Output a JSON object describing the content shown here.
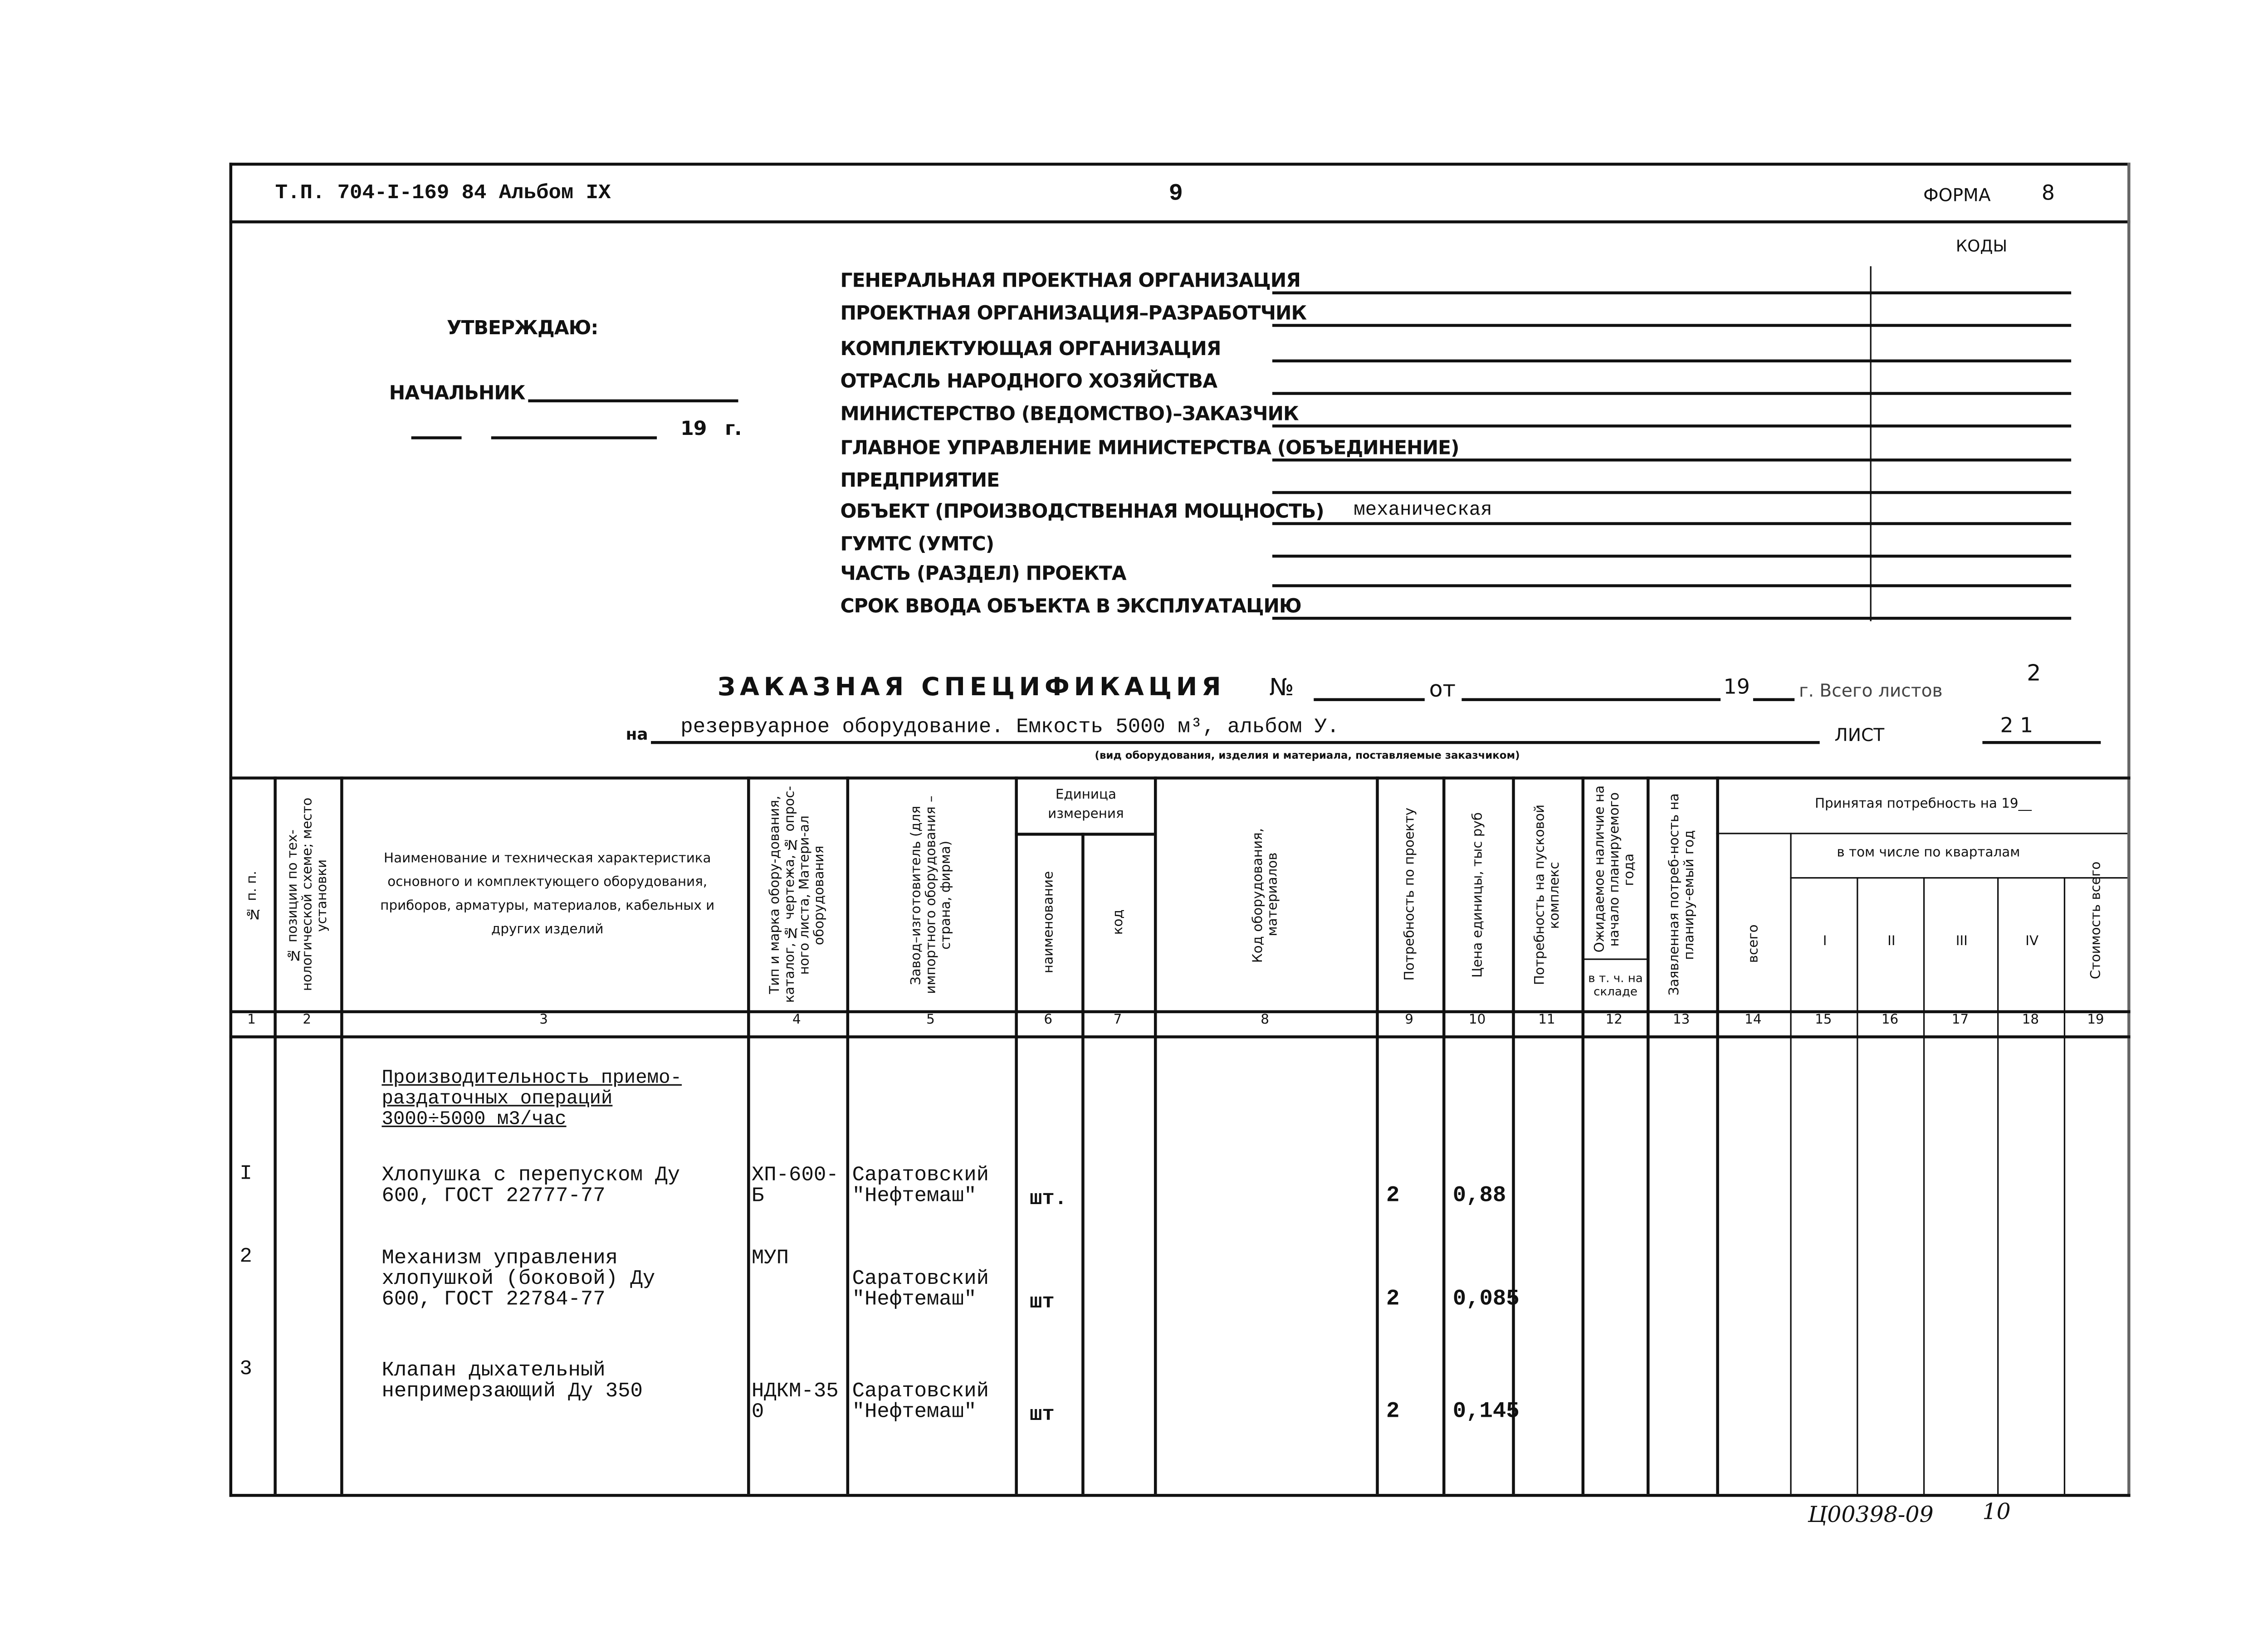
{
  "header": {
    "doc_ref": "Т.П. 704-I-169 84  Альбом IX",
    "page_number": "9",
    "form_label": "ФОРМА",
    "form_number": "8",
    "codes_label": "КОДЫ"
  },
  "approval": {
    "approve": "УТВЕРЖДАЮ:",
    "chief": "НАЧАЛЬНИК",
    "date_year": "19",
    "date_suffix": "г."
  },
  "fields": [
    {
      "label": "ГЕНЕРАЛЬНАЯ ПРОЕКТНАЯ ОРГАНИЗАЦИЯ",
      "value": ""
    },
    {
      "label": "ПРОЕКТНАЯ ОРГАНИЗАЦИЯ–РАЗРАБОТЧИК",
      "value": ""
    },
    {
      "label": "КОМПЛЕКТУЮЩАЯ ОРГАНИЗАЦИЯ",
      "value": ""
    },
    {
      "label": "ОТРАСЛЬ НАРОДНОГО ХОЗЯЙСТВА",
      "value": ""
    },
    {
      "label": "МИНИСТЕРСТВО (ВЕДОМСТВО)–ЗАКАЗЧИК",
      "value": ""
    },
    {
      "label": "ГЛАВНОЕ УПРАВЛЕНИЕ МИНИСТЕРСТВА (ОБЪЕДИНЕНИЕ)",
      "value": ""
    },
    {
      "label": "ПРЕДПРИЯТИЕ",
      "value": ""
    },
    {
      "label": "ОБЪЕКТ (ПРОИЗВОДСТВЕННАЯ МОЩНОСТЬ)",
      "value": "механическая"
    },
    {
      "label": "ГУМТС (УМТС)",
      "value": ""
    },
    {
      "label": "ЧАСТЬ (РАЗДЕЛ) ПРОЕКТА",
      "value": ""
    },
    {
      "label": "СРОК ВВОДА ОБЪЕКТА В ЭКСПЛУАТАЦИЮ",
      "value": ""
    }
  ],
  "spec": {
    "title": "ЗАКАЗНАЯ СПЕЦИФИКАЦИЯ",
    "no_label": "№",
    "from_label": "от",
    "year_label": "19",
    "sheets_label": "г. Всего листов",
    "sheets_total": "2",
    "on_label": "на",
    "subject": "резервуарное оборудование. Емкость 5000 м³, альбом У.",
    "subject_caption": "(вид оборудования, изделия и материала, поставляемые заказчиком)",
    "sheet_label": "ЛИСТ",
    "sheet_number": "2 1"
  },
  "columns": {
    "c1": "№ п. п.",
    "c2": "№ позиции по тех-нологической схеме; место установки",
    "c3": "Наименование и техническая характеристика основного и комплектующего оборудования, приборов, арматуры, материалов, кабельных и других изделий",
    "c4": "Тип и марка обору-дования, каталог, № чертежа, № опрос-ного листа, Матери-ал оборудования",
    "c5": "Завод–изготовитель (для импортного оборудования –страна, фирма)",
    "c6_7": "Единица измерения",
    "c6": "наименование",
    "c7": "код",
    "c8": "Код оборудования, материалов",
    "c9": "Потребность по проекту",
    "c10": "Цена единицы, тыс руб",
    "c11": "Потребность на пусковой комплекс",
    "c12": "Ожидаемое наличие на начало планируемого года",
    "c12b": "в т. ч. на складе",
    "c13": "Заявленная потреб-ность на планиру-емый год",
    "c14_19": "Принятая потребность на 19__",
    "c15_18": "в том числе по кварталам",
    "c14": "всего",
    "c15": "I",
    "c16": "II",
    "c17": "III",
    "c18": "IV",
    "c19": "Стоимость всего"
  },
  "column_numbers": [
    "1",
    "2",
    "3",
    "4",
    "5",
    "6",
    "7",
    "8",
    "9",
    "10",
    "11",
    "12",
    "13",
    "14",
    "15",
    "16",
    "17",
    "18",
    "19"
  ],
  "section_heading": "Производительность приемо-раздаточных операций 3000÷5000 м3/час",
  "rows": [
    {
      "n": "I",
      "name": "Хлопушка с перепуском Ду 600, ГОСТ 22777-77",
      "type": "ХП-600-Б",
      "maker": "Саратовский \"Нефтемаш\"",
      "unit": "шт.",
      "qty": "2",
      "price": "0,88"
    },
    {
      "n": "2",
      "name": "Механизм управления хлопушкой (боковой) Ду 600, ГОСТ 22784-77",
      "type": "МУП",
      "maker": "Саратовский \"Нефтемаш\"",
      "unit": "шт",
      "qty": "2",
      "price": "0,085"
    },
    {
      "n": "3",
      "name": "Клапан дыхательный непримерзающий Ду 350",
      "type": "НДКМ-350",
      "maker": "Саратовский \"Нефтемаш\"",
      "unit": "шт",
      "qty": "2",
      "price": "0,145"
    }
  ],
  "footer": {
    "code": "Ц00398-09",
    "page": "10"
  }
}
